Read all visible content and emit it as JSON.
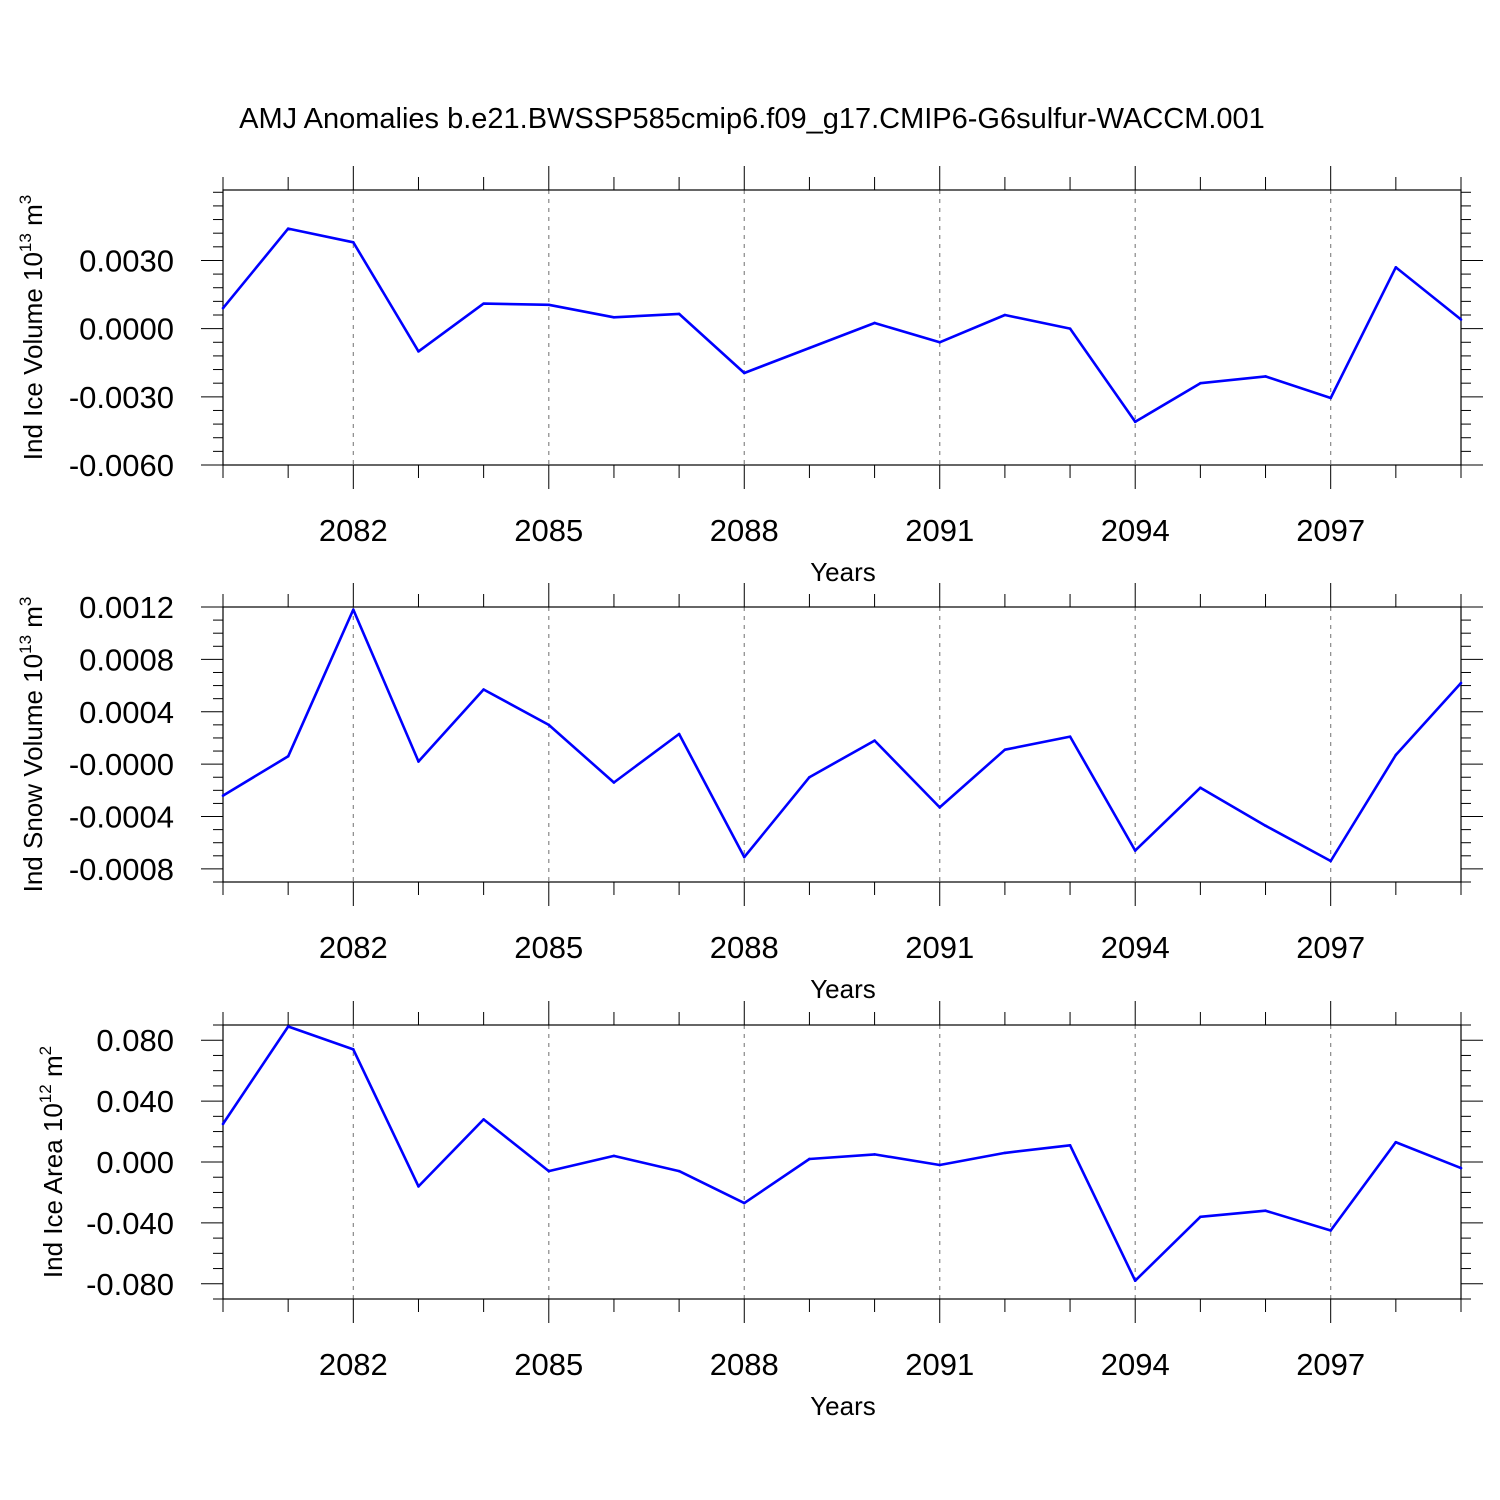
{
  "title": "AMJ Anomalies b.e21.BWSSP585cmip6.f09_g17.CMIP6-G6sulfur-WACCM.001",
  "colors": {
    "line": "#0000ff",
    "axis": "#000000",
    "grid": "#888888",
    "background": "#ffffff"
  },
  "chart_data": [
    {
      "type": "line",
      "ylabel": {
        "prefix": "Ind Ice Volume 10",
        "exponent": "13",
        "unit": " m",
        "unit_exponent": "3"
      },
      "xlabel": "Years",
      "xlim": [
        2080,
        2099
      ],
      "ylim": [
        -0.006,
        0.0061
      ],
      "xticks": [
        2082,
        2085,
        2088,
        2091,
        2094,
        2097
      ],
      "xtick_labels": [
        "2082",
        "2085",
        "2088",
        "2091",
        "2094",
        "2097"
      ],
      "yticks": [
        -0.006,
        -0.003,
        0.0,
        0.003
      ],
      "ytick_labels": [
        "-0.0060",
        "-0.0030",
        "0.0000",
        "0.0030"
      ],
      "y_minor_step": 0.0006,
      "grid": "dashed vertical lines at major x ticks",
      "x": [
        2080,
        2081,
        2082,
        2083,
        2084,
        2085,
        2086,
        2087,
        2088,
        2089,
        2090,
        2091,
        2092,
        2093,
        2094,
        2095,
        2096,
        2097,
        2098,
        2099
      ],
      "y": [
        0.0009,
        0.0044,
        0.0038,
        -0.001,
        0.0011,
        0.00105,
        0.0005,
        0.00065,
        -0.00195,
        -0.00085,
        0.00025,
        -0.0006,
        0.0006,
        0.0,
        -0.0041,
        -0.0024,
        -0.0021,
        -0.00305,
        0.0027,
        0.0004
      ]
    },
    {
      "type": "line",
      "ylabel": {
        "prefix": "Ind Snow Volume 10",
        "exponent": "13",
        "unit": " m",
        "unit_exponent": "3"
      },
      "xlabel": "Years",
      "xlim": [
        2080,
        2099
      ],
      "ylim": [
        -0.0009,
        0.0012
      ],
      "xticks": [
        2082,
        2085,
        2088,
        2091,
        2094,
        2097
      ],
      "xtick_labels": [
        "2082",
        "2085",
        "2088",
        "2091",
        "2094",
        "2097"
      ],
      "yticks": [
        -0.0008,
        -0.0004,
        0.0,
        0.0004,
        0.0008,
        0.0012
      ],
      "ytick_labels": [
        "-0.0008",
        "-0.0004",
        "-0.0000",
        "0.0004",
        "0.0008",
        "0.0012"
      ],
      "y_minor_step": 0.0001,
      "grid": "dashed vertical lines at major x ticks",
      "x": [
        2080,
        2081,
        2082,
        2083,
        2084,
        2085,
        2086,
        2087,
        2088,
        2089,
        2090,
        2091,
        2092,
        2093,
        2094,
        2095,
        2096,
        2097,
        2098,
        2099
      ],
      "y": [
        -0.00024,
        6e-05,
        0.00118,
        2e-05,
        0.00057,
        0.0003,
        -0.00014,
        0.00023,
        -0.00071,
        -0.0001,
        0.00018,
        -0.00033,
        0.00011,
        0.00021,
        -0.00066,
        -0.00018,
        -0.00047,
        -0.00074,
        7e-05,
        0.00062
      ]
    },
    {
      "type": "line",
      "ylabel": {
        "prefix": "Ind Ice Area 10",
        "exponent": "12",
        "unit": " m",
        "unit_exponent": "2"
      },
      "xlabel": "Years",
      "xlim": [
        2080,
        2099
      ],
      "ylim": [
        -0.09,
        0.09
      ],
      "xticks": [
        2082,
        2085,
        2088,
        2091,
        2094,
        2097
      ],
      "xtick_labels": [
        "2082",
        "2085",
        "2088",
        "2091",
        "2094",
        "2097"
      ],
      "yticks": [
        -0.08,
        -0.04,
        0.0,
        0.04,
        0.08
      ],
      "ytick_labels": [
        "-0.080",
        "-0.040",
        "0.000",
        "0.040",
        "0.080"
      ],
      "y_minor_step": 0.01,
      "grid": "dashed vertical lines at major x ticks",
      "x": [
        2080,
        2081,
        2082,
        2083,
        2084,
        2085,
        2086,
        2087,
        2088,
        2089,
        2090,
        2091,
        2092,
        2093,
        2094,
        2095,
        2096,
        2097,
        2098,
        2099
      ],
      "y": [
        0.025,
        0.089,
        0.074,
        -0.016,
        0.028,
        -0.006,
        0.004,
        -0.006,
        -0.027,
        0.002,
        0.005,
        -0.002,
        0.006,
        0.011,
        -0.078,
        -0.036,
        -0.032,
        -0.045,
        0.013,
        -0.004
      ]
    }
  ]
}
